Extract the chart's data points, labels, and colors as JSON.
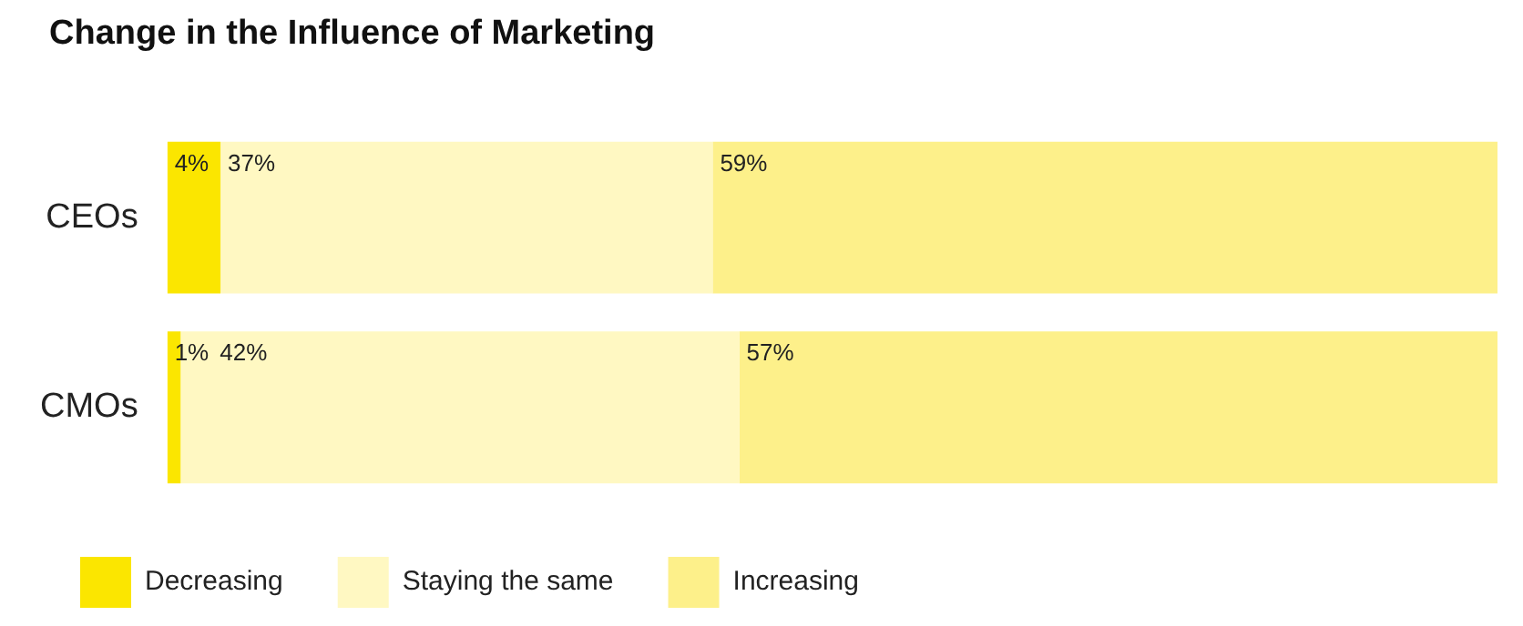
{
  "chart_data": {
    "type": "bar",
    "orientation": "horizontal",
    "stacked": true,
    "title": "Change in the Influence of Marketing",
    "categories": [
      "CEOs",
      "CMOs"
    ],
    "series": [
      {
        "name": "Decreasing",
        "color": "#fbe600",
        "values": [
          4,
          1
        ],
        "value_labels": [
          "4%",
          "1%"
        ]
      },
      {
        "name": "Staying the same",
        "color": "#fff8c2",
        "values": [
          37,
          42
        ],
        "value_labels": [
          "37%",
          "42%"
        ]
      },
      {
        "name": "Increasing",
        "color": "#fdf08a",
        "values": [
          59,
          57
        ],
        "value_labels": [
          "59%",
          "57%"
        ]
      }
    ],
    "legend": "bottom left"
  }
}
